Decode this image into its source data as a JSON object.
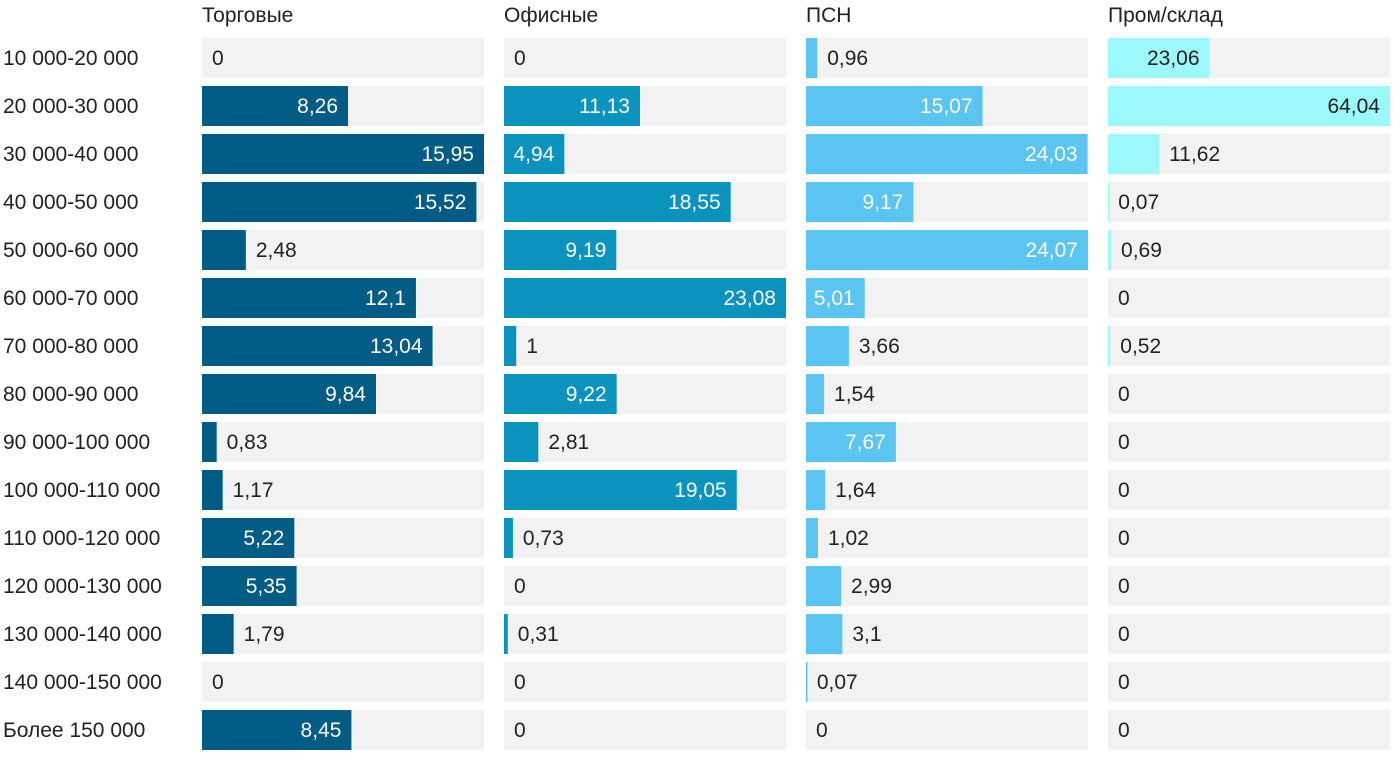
{
  "chart_data": {
    "type": "bar",
    "orientation": "horizontal",
    "layout": "small-multiples",
    "title": "",
    "xlabel": "",
    "ylabel": "",
    "categories": [
      "10 000-20 000",
      "20 000-30 000",
      "30 000-40 000",
      "40 000-50 000",
      "50 000-60 000",
      "60 000-70 000",
      "70 000-80 000",
      "80 000-90 000",
      "90 000-100 000",
      "100 000-110 000",
      "110 000-120 000",
      "120 000-130 000",
      "130 000-140 000",
      "140 000-150 000",
      "Более 150 000"
    ],
    "series": [
      {
        "name": "Торговые",
        "color": "#005b85",
        "xlim": [
          0,
          15.95
        ],
        "values": [
          0,
          8.26,
          15.95,
          15.52,
          2.48,
          12.1,
          13.04,
          9.84,
          0.83,
          1.17,
          5.22,
          5.35,
          1.79,
          0,
          8.45
        ],
        "labels": [
          "0",
          "8,26",
          "15,95",
          "15,52",
          "2,48",
          "12,1",
          "13,04",
          "9,84",
          "0,83",
          "1,17",
          "5,22",
          "5,35",
          "1,79",
          "0",
          "8,45"
        ]
      },
      {
        "name": "Офисные",
        "color": "#0a93bd",
        "xlim": [
          0,
          23.08
        ],
        "values": [
          0,
          11.13,
          4.94,
          18.55,
          9.19,
          23.08,
          1,
          9.22,
          2.81,
          19.05,
          0.73,
          0,
          0.31,
          0,
          0
        ],
        "labels": [
          "0",
          "11,13",
          "4,94",
          "18,55",
          "9,19",
          "23,08",
          "1",
          "9,22",
          "2,81",
          "19,05",
          "0,73",
          "0",
          "0,31",
          "0",
          "0"
        ]
      },
      {
        "name": "ПСН",
        "color": "#5bc4f0",
        "xlim": [
          0,
          24.07
        ],
        "values": [
          0.96,
          15.07,
          24.03,
          9.17,
          24.07,
          5.01,
          3.66,
          1.54,
          7.67,
          1.64,
          1.02,
          2.99,
          3.1,
          0.07,
          0
        ],
        "labels": [
          "0,96",
          "15,07",
          "24,03",
          "9,17",
          "24,07",
          "5,01",
          "3,66",
          "1,54",
          "7,67",
          "1,64",
          "1,02",
          "2,99",
          "3,1",
          "0,07",
          "0"
        ]
      },
      {
        "name": "Пром/склад",
        "color": "#9df8fc",
        "xlim": [
          0,
          64.04
        ],
        "values": [
          23.06,
          64.04,
          11.62,
          0.07,
          0.69,
          0,
          0.52,
          0,
          0,
          0,
          0,
          0,
          0,
          0,
          0
        ],
        "labels": [
          "23,06",
          "64,04",
          "11,62",
          "0,07",
          "0,69",
          "0",
          "0,52",
          "0",
          "0",
          "0",
          "0",
          "0",
          "0",
          "0",
          "0"
        ]
      }
    ],
    "track_color": "#f2f2f2",
    "grid": false,
    "legend": "none"
  }
}
